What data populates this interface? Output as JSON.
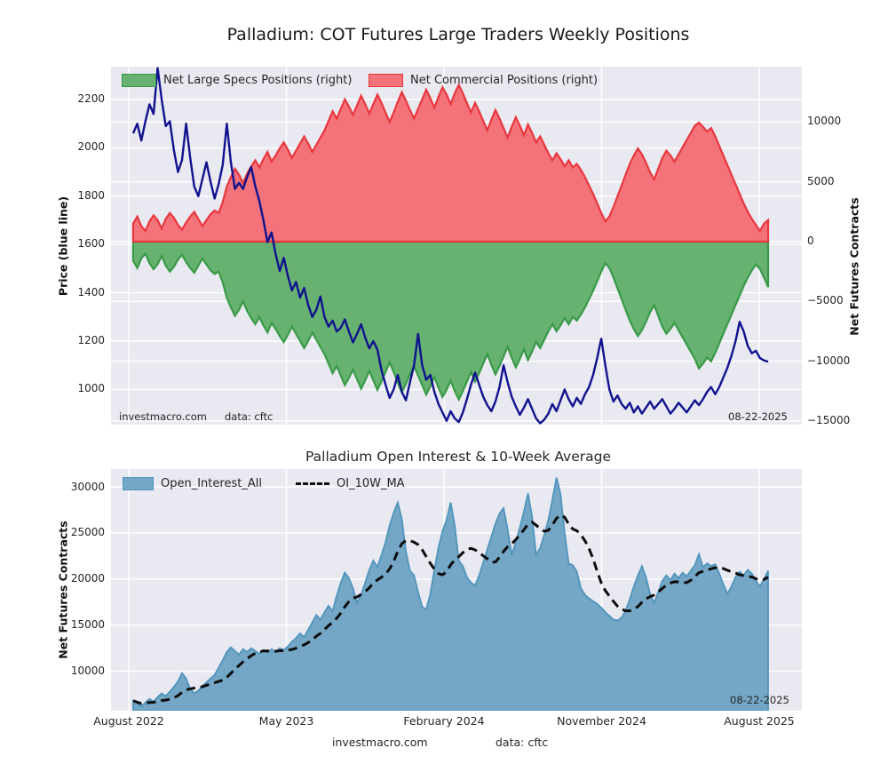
{
  "top_chart": {
    "title": "Palladium: COT Futures Large Traders Weekly Positions",
    "legend": [
      {
        "label": "Net Large Specs Positions (right)",
        "color": "#68b271",
        "edge": "#379a46"
      },
      {
        "label": "Net Commercial Positions (right)",
        "color": "#f4737a",
        "edge": "#e8373d"
      }
    ],
    "left_axis_label": "Price (blue line)",
    "right_axis_label": "Net Futures Contracts",
    "source_text": "investmacro.com",
    "data_source_text": "data: cftc",
    "date_annotation": "08-22-2025"
  },
  "bottom_chart": {
    "title": "Palladium Open Interest & 10-Week Average",
    "legend": [
      {
        "label": "Open_Interest_All",
        "color": "#74a7c6",
        "edge": "#4e94bc"
      },
      {
        "label": "OI_10W_MA"
      }
    ],
    "left_axis_label": "Net Futures Contracts",
    "date_annotation": "08-22-2025"
  },
  "footer": {
    "source_text": "investmacro.com",
    "data_source_text": "data: cftc"
  },
  "colors": {
    "panel_bg": "#e9e9f1",
    "grid": "#ffffff",
    "price_line": "#10128f",
    "commercials_fill": "#f4737a",
    "commercials_edge": "#e8373d",
    "specs_fill": "#68b271",
    "specs_edge": "#379a46",
    "oi_fill": "#74a7c6",
    "oi_edge": "#4e94bc",
    "ma_line": "#0d0d0d",
    "text": "#262626"
  },
  "chart_data": [
    {
      "type": "area",
      "title": "Palladium: COT Futures Large Traders Weekly Positions",
      "x_tick_labels": [
        "August 2022",
        "May 2023",
        "February 2024",
        "November 2024",
        "August 2025"
      ],
      "left_axis": {
        "label": "Price (blue line)",
        "ticks": [
          2200,
          2000,
          1800,
          1600,
          1400,
          1200,
          1000
        ],
        "range": [
          855,
          2336
        ]
      },
      "right_axis": {
        "label": "Net Futures Contracts",
        "ticks": [
          10000,
          5000,
          0,
          -5000,
          -10000,
          -15000
        ],
        "range": [
          -15300,
          14640
        ]
      },
      "grid": true,
      "legend_position": "upper center, 2 columns",
      "series": [
        {
          "name": "Net Commercial Positions (right)",
          "axis": "right",
          "style": "area",
          "values": [
            1500,
            2100,
            1300,
            900,
            1700,
            2200,
            1800,
            1100,
            1900,
            2400,
            2000,
            1400,
            1000,
            1600,
            2100,
            2500,
            1900,
            1300,
            1800,
            2300,
            2600,
            2400,
            3300,
            4600,
            5400,
            6100,
            5600,
            4900,
            5700,
            6300,
            6800,
            6200,
            6900,
            7500,
            6700,
            7200,
            7800,
            8300,
            7700,
            7000,
            7600,
            8200,
            8800,
            8200,
            7500,
            8100,
            8700,
            9300,
            10100,
            10900,
            10300,
            11100,
            11900,
            11300,
            10600,
            11400,
            12200,
            11500,
            10700,
            11500,
            12300,
            11600,
            10800,
            10000,
            10800,
            11700,
            12500,
            11800,
            11000,
            10300,
            11100,
            11900,
            12700,
            12000,
            11200,
            12100,
            12900,
            12300,
            11500,
            12400,
            13100,
            12400,
            11600,
            10800,
            11600,
            10900,
            10100,
            9300,
            10200,
            11000,
            10300,
            9500,
            8700,
            9600,
            10400,
            9700,
            8900,
            9800,
            9100,
            8300,
            8800,
            8100,
            7400,
            6800,
            7400,
            6900,
            6300,
            6800,
            6200,
            6500,
            6000,
            5400,
            4700,
            4000,
            3200,
            2400,
            1700,
            2100,
            2900,
            3800,
            4700,
            5600,
            6500,
            7200,
            7800,
            7300,
            6600,
            5800,
            5200,
            6100,
            7000,
            7600,
            7200,
            6700,
            7300,
            7900,
            8500,
            9100,
            9700,
            9950,
            9600,
            9200,
            9500,
            8800,
            8000,
            7200,
            6400,
            5600,
            4800,
            4000,
            3200,
            2500,
            1900,
            1400,
            900,
            1500,
            1800
          ]
        },
        {
          "name": "Net Large Specs Positions (right)",
          "axis": "right",
          "style": "area",
          "values": [
            -1600,
            -2200,
            -1400,
            -1000,
            -1800,
            -2300,
            -1900,
            -1200,
            -2000,
            -2500,
            -2100,
            -1500,
            -1100,
            -1700,
            -2200,
            -2600,
            -2000,
            -1400,
            -1900,
            -2400,
            -2700,
            -2500,
            -3400,
            -4700,
            -5500,
            -6200,
            -5700,
            -5000,
            -5800,
            -6400,
            -6900,
            -6300,
            -7000,
            -7600,
            -6800,
            -7300,
            -7900,
            -8400,
            -7800,
            -7100,
            -7700,
            -8300,
            -8900,
            -8300,
            -7600,
            -8200,
            -8800,
            -9400,
            -10200,
            -11000,
            -10400,
            -11200,
            -12000,
            -11400,
            -10700,
            -11500,
            -12300,
            -11600,
            -10800,
            -11600,
            -12400,
            -11700,
            -10900,
            -10100,
            -10900,
            -11800,
            -12600,
            -11900,
            -11100,
            -10400,
            -11200,
            -12000,
            -12800,
            -12100,
            -11300,
            -12200,
            -13000,
            -12400,
            -11600,
            -12500,
            -13200,
            -12500,
            -11700,
            -10900,
            -11700,
            -11000,
            -10200,
            -9400,
            -10300,
            -11100,
            -10400,
            -9600,
            -8800,
            -9700,
            -10500,
            -9800,
            -9000,
            -9900,
            -9200,
            -8400,
            -8900,
            -8200,
            -7500,
            -6900,
            -7500,
            -7000,
            -6400,
            -6900,
            -6300,
            -6600,
            -6100,
            -5500,
            -4800,
            -4100,
            -3300,
            -2500,
            -1800,
            -2200,
            -3000,
            -3900,
            -4800,
            -5700,
            -6600,
            -7300,
            -7900,
            -7400,
            -6700,
            -5900,
            -5300,
            -6200,
            -7100,
            -7700,
            -7300,
            -6800,
            -7400,
            -8000,
            -8600,
            -9200,
            -9800,
            -10600,
            -10200,
            -9700,
            -10000,
            -9300,
            -8500,
            -7700,
            -6900,
            -6100,
            -5300,
            -4500,
            -3700,
            -3000,
            -2400,
            -1900,
            -2300,
            -3000,
            -3800
          ]
        },
        {
          "name": "Price (blue line)",
          "axis": "left",
          "style": "line",
          "values": [
            2060,
            2100,
            2030,
            2110,
            2180,
            2140,
            2330,
            2200,
            2090,
            2110,
            1990,
            1900,
            1950,
            2100,
            1960,
            1840,
            1800,
            1870,
            1940,
            1860,
            1790,
            1850,
            1930,
            2100,
            1940,
            1830,
            1855,
            1830,
            1880,
            1920,
            1840,
            1780,
            1700,
            1610,
            1650,
            1560,
            1490,
            1545,
            1470,
            1410,
            1445,
            1380,
            1420,
            1350,
            1300,
            1330,
            1385,
            1300,
            1260,
            1285,
            1240,
            1255,
            1290,
            1240,
            1195,
            1230,
            1270,
            1215,
            1170,
            1200,
            1165,
            1080,
            1020,
            965,
            1000,
            1060,
            990,
            955,
            1030,
            1100,
            1230,
            1100,
            1040,
            1060,
            990,
            940,
            905,
            870,
            910,
            880,
            865,
            905,
            960,
            1020,
            1070,
            1020,
            970,
            935,
            910,
            950,
            1010,
            1100,
            1030,
            970,
            930,
            895,
            925,
            960,
            920,
            880,
            860,
            875,
            900,
            940,
            910,
            955,
            1000,
            960,
            930,
            965,
            940,
            980,
            1010,
            1060,
            1130,
            1210,
            1100,
            1000,
            950,
            975,
            940,
            920,
            945,
            905,
            930,
            900,
            925,
            950,
            920,
            940,
            960,
            930,
            900,
            920,
            945,
            925,
            905,
            930,
            955,
            935,
            960,
            990,
            1010,
            980,
            1010,
            1050,
            1090,
            1140,
            1200,
            1280,
            1240,
            1180,
            1150,
            1160,
            1130,
            1120,
            1115
          ]
        }
      ],
      "annotations": [
        "investmacro.com",
        "data: cftc",
        "08-22-2025"
      ]
    },
    {
      "type": "area",
      "title": "Palladium Open Interest & 10-Week Average",
      "x_tick_labels": [
        "August 2022",
        "May 2023",
        "February 2024",
        "November 2024",
        "August 2025"
      ],
      "left_axis": {
        "label": "Net Futures Contracts",
        "ticks": [
          30000,
          25000,
          20000,
          15000,
          10000
        ],
        "range": [
          5700,
          31900
        ]
      },
      "grid": true,
      "ma_window": 10,
      "series": [
        {
          "name": "Open_Interest_All",
          "style": "area",
          "values": [
            6800,
            6500,
            6200,
            6600,
            7000,
            6700,
            7200,
            7600,
            7300,
            7800,
            8300,
            8900,
            9800,
            9200,
            8100,
            7600,
            7900,
            8400,
            8800,
            9200,
            9600,
            10400,
            11200,
            12100,
            12600,
            12200,
            11800,
            12400,
            12100,
            12500,
            12200,
            11900,
            12300,
            12000,
            12400,
            12100,
            12500,
            12300,
            12700,
            13200,
            13600,
            14100,
            13700,
            14500,
            15300,
            16100,
            15600,
            16400,
            17100,
            16500,
            18200,
            19600,
            20700,
            20100,
            19000,
            17400,
            18300,
            19600,
            21000,
            22000,
            21300,
            22600,
            24000,
            25800,
            27200,
            28300,
            26500,
            23000,
            20900,
            20400,
            18600,
            17000,
            16700,
            18400,
            21000,
            23400,
            25200,
            26400,
            28300,
            25800,
            22000,
            21400,
            20200,
            19600,
            19300,
            20400,
            21800,
            23200,
            24600,
            26000,
            27100,
            27700,
            25400,
            22600,
            24000,
            25600,
            27300,
            29300,
            26800,
            22600,
            23400,
            24800,
            26400,
            28600,
            31000,
            29200,
            25000,
            21700,
            21500,
            20800,
            19000,
            18300,
            17900,
            17600,
            17300,
            16900,
            16400,
            16000,
            15600,
            15500,
            15800,
            16600,
            17800,
            19200,
            20400,
            21400,
            20200,
            18400,
            17400,
            18600,
            19800,
            20400,
            19900,
            20600,
            20100,
            20700,
            20300,
            20900,
            21500,
            22700,
            21300,
            21700,
            21400,
            21600,
            20600,
            19400,
            18400,
            19200,
            20200,
            20800,
            20400,
            21000,
            20600,
            19800,
            19200,
            20000,
            20900
          ]
        },
        {
          "name": "OI_10W_MA",
          "style": "dashed-line",
          "derived": "10-week trailing moving average of Open_Interest_All"
        }
      ],
      "annotations": [
        "08-22-2025",
        "investmacro.com",
        "data: cftc"
      ]
    }
  ],
  "x_ticks": [
    "August 2022",
    "May 2023",
    "February 2024",
    "November 2024",
    "August 2025"
  ]
}
